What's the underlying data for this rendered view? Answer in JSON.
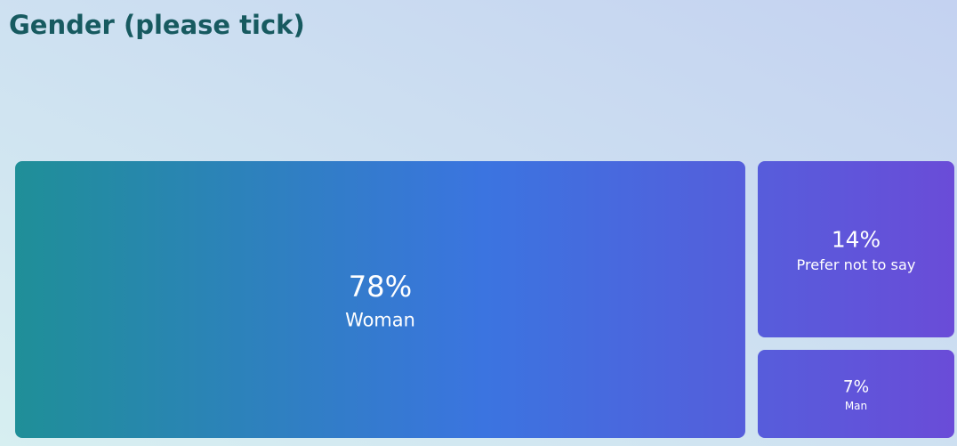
{
  "chart_data": {
    "type": "treemap",
    "title": "Gender (please tick)",
    "categories": [
      "Woman",
      "Prefer not to say",
      "Man"
    ],
    "values": [
      78,
      14,
      7
    ],
    "value_labels": [
      "78%",
      "14%",
      "7%"
    ],
    "colors": [
      "#1f8f98",
      "#3b74e0",
      "#6a4cd8"
    ]
  }
}
